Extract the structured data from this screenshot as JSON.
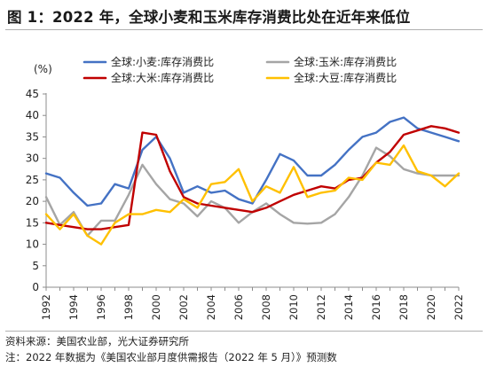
{
  "figure": {
    "title": "图 1：2022 年，全球小麦和玉米库存消费比处在近年来低位"
  },
  "notes": {
    "source": "资料来源：美国农业部，光大证券研究所",
    "note": "注：2022 年数据为《美国农业部月度供需报告（2022 年 5 月）》预测数"
  },
  "chart_data": {
    "type": "line",
    "unit_label": "(%)",
    "x": [
      1992,
      1993,
      1994,
      1995,
      1996,
      1997,
      1998,
      1999,
      2000,
      2001,
      2002,
      2003,
      2004,
      2005,
      2006,
      2007,
      2008,
      2009,
      2010,
      2011,
      2012,
      2013,
      2014,
      2015,
      2016,
      2017,
      2018,
      2019,
      2020,
      2021,
      2022
    ],
    "x_ticks": [
      "1992",
      "1994",
      "1996",
      "1998",
      "2000",
      "2002",
      "2004",
      "2006",
      "2008",
      "2010",
      "2012",
      "2014",
      "2016",
      "2018",
      "2020",
      "2022"
    ],
    "y_ticks": [
      "0",
      "5",
      "10",
      "15",
      "20",
      "25",
      "30",
      "35",
      "40",
      "45"
    ],
    "xlim": [
      1992,
      2022
    ],
    "ylim": [
      0,
      45
    ],
    "grid": false,
    "legend_position": "top",
    "series": [
      {
        "name": "全球:小麦:库存消费比",
        "color": "#4472C4",
        "values": [
          26.5,
          25.5,
          22,
          19,
          19.5,
          24,
          23,
          32,
          35,
          30,
          22,
          23.5,
          22,
          22.5,
          20.5,
          19.5,
          25,
          31,
          29.5,
          26,
          26,
          28.5,
          32,
          35,
          36,
          38.5,
          39.5,
          37,
          36,
          35,
          34
        ]
      },
      {
        "name": "全球:玉米:库存消费比",
        "color": "#A5A5A5",
        "values": [
          21,
          14.5,
          17.5,
          12,
          15.5,
          15.5,
          21.5,
          28.5,
          24,
          20.5,
          19.5,
          16.5,
          20,
          18.5,
          15,
          17.5,
          19.5,
          17,
          15,
          14.8,
          15,
          17,
          21,
          26,
          32.5,
          30.5,
          27.5,
          26.5,
          26,
          26,
          26
        ]
      },
      {
        "name": "全球:大米:库存消费比",
        "color": "#C00000",
        "values": [
          15,
          14.5,
          14,
          13.5,
          13.5,
          14,
          14.5,
          36,
          35.5,
          27,
          21,
          19.5,
          19,
          18.5,
          18,
          17.5,
          18.5,
          20,
          21.5,
          22.5,
          23.5,
          23,
          25,
          25.5,
          29,
          31.5,
          35.5,
          36.5,
          37.5,
          37,
          36
        ]
      },
      {
        "name": "全球:大豆:库存消费比",
        "color": "#FFC000",
        "values": [
          17,
          13.5,
          17,
          12,
          10,
          15,
          17,
          17,
          18,
          17.5,
          20.5,
          18.5,
          24,
          24.5,
          27.5,
          20,
          23.5,
          22,
          28,
          21,
          22,
          22.5,
          25.5,
          25,
          29,
          28.5,
          33,
          27,
          26,
          23.5,
          26.5
        ]
      }
    ]
  }
}
